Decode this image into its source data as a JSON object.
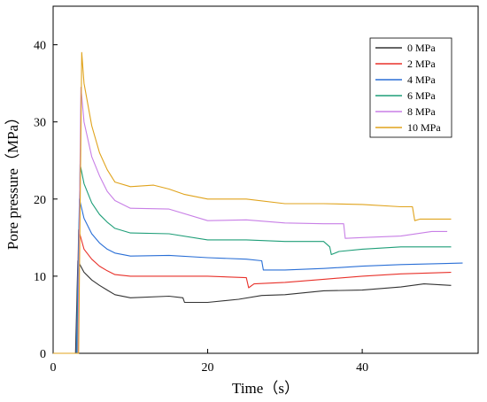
{
  "chart_data": {
    "type": "line",
    "xlabel": "Time（s）",
    "ylabel": "Pore pressure（MPa）",
    "xlim": [
      0,
      55
    ],
    "ylim": [
      0,
      45
    ],
    "xticks": [
      0,
      20,
      40
    ],
    "yticks": [
      0,
      10,
      20,
      30,
      40
    ],
    "grid": false,
    "legend_position": "top-right",
    "series": [
      {
        "name": "0 MPa",
        "color": "#333333",
        "x": [
          0,
          2.5,
          2.9,
          3.2,
          4,
          5,
          6,
          7,
          8,
          10,
          15,
          16.8,
          17,
          20,
          24,
          27,
          30,
          35,
          40,
          45,
          48,
          51.5
        ],
        "y": [
          0,
          0,
          0,
          12,
          10.5,
          9.5,
          8.8,
          8.2,
          7.6,
          7.2,
          7.4,
          7.2,
          6.6,
          6.6,
          7,
          7.5,
          7.6,
          8.1,
          8.2,
          8.6,
          9,
          8.8
        ]
      },
      {
        "name": "2 MPa",
        "color": "#e8312a",
        "x": [
          0,
          2.5,
          3.0,
          3.3,
          4,
          5,
          6,
          7,
          8,
          10,
          15,
          20,
          25,
          25.3,
          26,
          30,
          35,
          40,
          45,
          51.5
        ],
        "y": [
          0,
          0,
          0,
          16,
          13.5,
          12.2,
          11.3,
          10.7,
          10.2,
          10.0,
          10.0,
          10.0,
          9.8,
          8.5,
          9.0,
          9.2,
          9.6,
          10.0,
          10.3,
          10.5
        ]
      },
      {
        "name": "4 MPa",
        "color": "#2a6fd6",
        "x": [
          0,
          2.5,
          3.0,
          3.4,
          4,
          5,
          6,
          7,
          8,
          10,
          15,
          20,
          25,
          27,
          27.2,
          30,
          35,
          40,
          45,
          53
        ],
        "y": [
          0,
          0,
          0,
          20,
          17.5,
          15.5,
          14.3,
          13.5,
          13.0,
          12.6,
          12.7,
          12.4,
          12.2,
          12.0,
          10.8,
          10.8,
          11.0,
          11.3,
          11.5,
          11.7
        ]
      },
      {
        "name": "6 MPa",
        "color": "#1e9e78",
        "x": [
          0,
          2.5,
          3.1,
          3.5,
          4,
          5,
          6,
          7,
          8,
          10,
          15,
          20,
          25,
          30,
          35,
          35.8,
          36,
          37,
          40,
          45,
          51.5
        ],
        "y": [
          0,
          0,
          0,
          24.5,
          22,
          19.5,
          18,
          17,
          16.2,
          15.6,
          15.5,
          14.7,
          14.7,
          14.5,
          14.5,
          13.8,
          12.8,
          13.2,
          13.5,
          13.8,
          13.8
        ]
      },
      {
        "name": "8 MPa",
        "color": "#c87fe6",
        "x": [
          0,
          2.5,
          3.2,
          3.6,
          4,
          5,
          6,
          7,
          8,
          10,
          15,
          20,
          25,
          30,
          35,
          37.6,
          37.8,
          40,
          45,
          49,
          51
        ],
        "y": [
          0,
          0,
          0,
          34.5,
          30,
          25.5,
          23,
          21,
          19.8,
          18.8,
          18.7,
          17.2,
          17.3,
          16.9,
          16.8,
          16.8,
          14.9,
          15.0,
          15.2,
          15.8,
          15.8
        ]
      },
      {
        "name": "10 MPa",
        "color": "#e0a31c",
        "x": [
          0,
          2.5,
          3.3,
          3.7,
          4,
          5,
          6,
          7,
          8,
          10,
          13,
          15,
          17,
          20,
          25,
          30,
          35,
          40,
          45,
          46.5,
          46.8,
          47.5,
          51.5
        ],
        "y": [
          0,
          0,
          0,
          39,
          35,
          29.5,
          26,
          23.8,
          22.2,
          21.6,
          21.8,
          21.3,
          20.6,
          20.0,
          20.0,
          19.4,
          19.4,
          19.3,
          19.0,
          19.0,
          17.2,
          17.4,
          17.4
        ]
      }
    ]
  }
}
